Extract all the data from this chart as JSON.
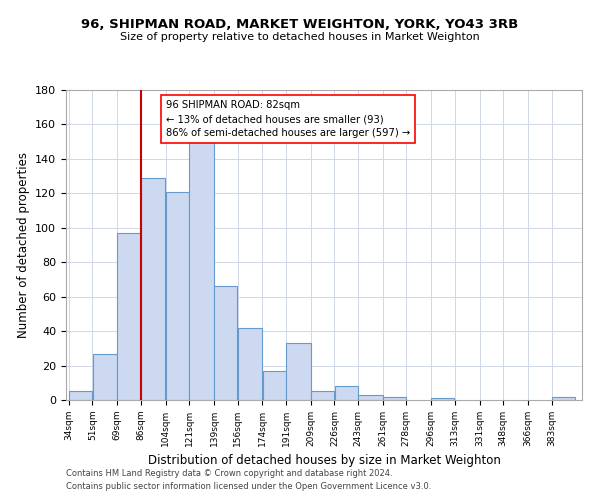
{
  "title": "96, SHIPMAN ROAD, MARKET WEIGHTON, YORK, YO43 3RB",
  "subtitle": "Size of property relative to detached houses in Market Weighton",
  "xlabel": "Distribution of detached houses by size in Market Weighton",
  "ylabel": "Number of detached properties",
  "bar_color": "#ccd9f0",
  "bar_edge_color": "#6699cc",
  "annotation_text": "96 SHIPMAN ROAD: 82sqm\n← 13% of detached houses are smaller (93)\n86% of semi-detached houses are larger (597) →",
  "red_line_x": 86,
  "bin_edges": [
    34,
    51,
    69,
    86,
    104,
    121,
    139,
    156,
    174,
    191,
    209,
    226,
    243,
    261,
    278,
    296,
    313,
    331,
    348,
    366,
    383,
    400
  ],
  "bar_heights": [
    5,
    27,
    97,
    129,
    121,
    151,
    66,
    42,
    17,
    33,
    5,
    8,
    3,
    2,
    0,
    1,
    0,
    0,
    0,
    0,
    2
  ],
  "ylim": [
    0,
    180
  ],
  "yticks": [
    0,
    20,
    40,
    60,
    80,
    100,
    120,
    140,
    160,
    180
  ],
  "tick_labels": [
    "34sqm",
    "51sqm",
    "69sqm",
    "86sqm",
    "104sqm",
    "121sqm",
    "139sqm",
    "156sqm",
    "174sqm",
    "191sqm",
    "209sqm",
    "226sqm",
    "243sqm",
    "261sqm",
    "278sqm",
    "296sqm",
    "313sqm",
    "331sqm",
    "348sqm",
    "366sqm",
    "383sqm"
  ],
  "footnote1": "Contains HM Land Registry data © Crown copyright and database right 2024.",
  "footnote2": "Contains public sector information licensed under the Open Government Licence v3.0.",
  "background_color": "#ffffff",
  "grid_color": "#d0d8e8"
}
